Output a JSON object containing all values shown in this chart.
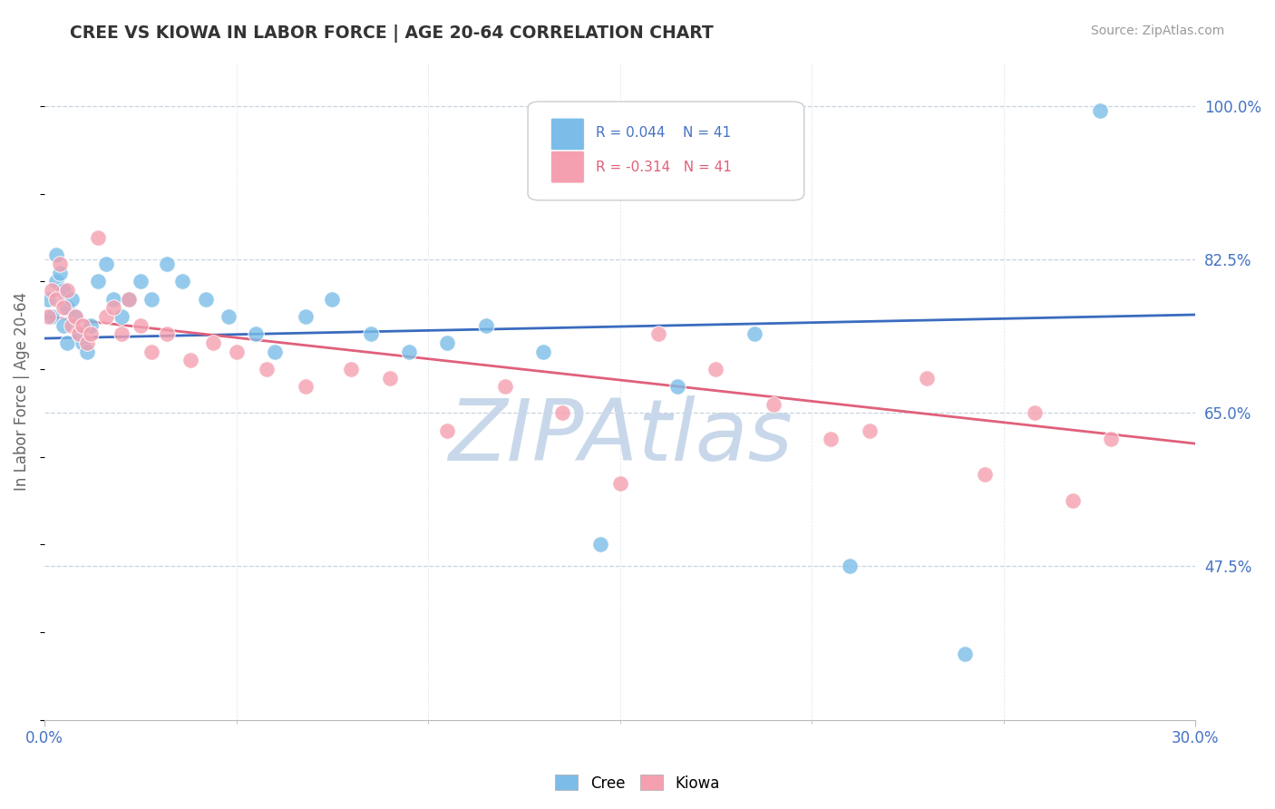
{
  "title": "CREE VS KIOWA IN LABOR FORCE | AGE 20-64 CORRELATION CHART",
  "source_text": "Source: ZipAtlas.com",
  "ylabel": "In Labor Force | Age 20-64",
  "xlim": [
    0.0,
    0.3
  ],
  "ylim": [
    0.3,
    1.05
  ],
  "ytick_positions": [
    0.475,
    0.65,
    0.825,
    1.0
  ],
  "ytick_labels": [
    "47.5%",
    "65.0%",
    "82.5%",
    "100.0%"
  ],
  "cree_color": "#7bbde8",
  "kiowa_color": "#f4a0b0",
  "cree_line_color": "#3a6bbf",
  "kiowa_line_color": "#e0607a",
  "watermark": "ZIPAtlas",
  "watermark_color": "#c8d8ea",
  "cree_x": [
    0.001,
    0.002,
    0.003,
    0.003,
    0.004,
    0.005,
    0.005,
    0.006,
    0.006,
    0.007,
    0.008,
    0.009,
    0.01,
    0.011,
    0.012,
    0.014,
    0.016,
    0.018,
    0.02,
    0.022,
    0.025,
    0.028,
    0.032,
    0.036,
    0.042,
    0.048,
    0.055,
    0.06,
    0.068,
    0.075,
    0.085,
    0.095,
    0.105,
    0.115,
    0.13,
    0.145,
    0.165,
    0.185,
    0.21,
    0.24,
    0.275
  ],
  "cree_y": [
    0.78,
    0.76,
    0.8,
    0.83,
    0.81,
    0.79,
    0.75,
    0.77,
    0.73,
    0.78,
    0.76,
    0.74,
    0.73,
    0.72,
    0.75,
    0.8,
    0.82,
    0.78,
    0.76,
    0.78,
    0.8,
    0.78,
    0.82,
    0.8,
    0.78,
    0.76,
    0.74,
    0.72,
    0.76,
    0.78,
    0.74,
    0.72,
    0.73,
    0.75,
    0.72,
    0.5,
    0.68,
    0.74,
    0.475,
    0.375,
    0.995
  ],
  "kiowa_x": [
    0.001,
    0.002,
    0.003,
    0.004,
    0.005,
    0.006,
    0.007,
    0.008,
    0.009,
    0.01,
    0.011,
    0.012,
    0.014,
    0.016,
    0.018,
    0.02,
    0.022,
    0.025,
    0.028,
    0.032,
    0.038,
    0.044,
    0.05,
    0.058,
    0.068,
    0.08,
    0.09,
    0.105,
    0.12,
    0.135,
    0.15,
    0.16,
    0.175,
    0.19,
    0.205,
    0.215,
    0.23,
    0.245,
    0.258,
    0.268,
    0.278
  ],
  "kiowa_y": [
    0.76,
    0.79,
    0.78,
    0.82,
    0.77,
    0.79,
    0.75,
    0.76,
    0.74,
    0.75,
    0.73,
    0.74,
    0.85,
    0.76,
    0.77,
    0.74,
    0.78,
    0.75,
    0.72,
    0.74,
    0.71,
    0.73,
    0.72,
    0.7,
    0.68,
    0.7,
    0.69,
    0.63,
    0.68,
    0.65,
    0.57,
    0.74,
    0.7,
    0.66,
    0.62,
    0.63,
    0.69,
    0.58,
    0.65,
    0.55,
    0.62
  ],
  "cree_line_x0": 0.0,
  "cree_line_y0": 0.735,
  "cree_line_x1": 0.3,
  "cree_line_y1": 0.762,
  "kiowa_line_x0": 0.0,
  "kiowa_line_y0": 0.76,
  "kiowa_line_x1": 0.3,
  "kiowa_line_y1": 0.615
}
